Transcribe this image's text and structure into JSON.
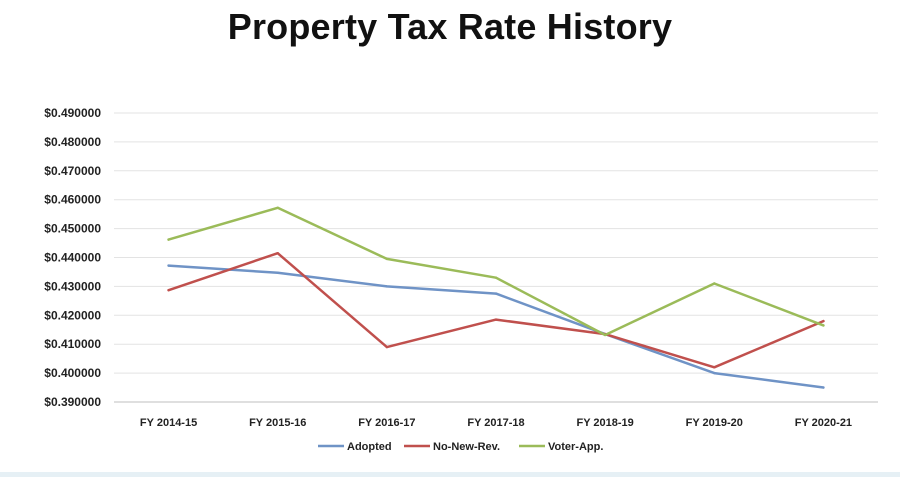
{
  "chart_data": {
    "type": "line",
    "title": "Property Tax Rate History",
    "categories": [
      "FY 2014-15",
      "FY 2015-16",
      "FY 2016-17",
      "FY 2017-18",
      "FY 2018-19",
      "FY 2019-20",
      "FY 2020-21"
    ],
    "yticks": [
      "$0.390000",
      "$0.400000",
      "$0.410000",
      "$0.420000",
      "$0.430000",
      "$0.440000",
      "$0.450000",
      "$0.460000",
      "$0.470000",
      "$0.480000",
      "$0.490000"
    ],
    "ylim": [
      0.39,
      0.49
    ],
    "grid": true,
    "legend_position": "bottom",
    "series": [
      {
        "name": "Adopted",
        "color": "#6f93c6",
        "values": [
          0.4372,
          0.4347,
          0.43,
          0.4275,
          0.4135,
          0.4,
          0.395
        ]
      },
      {
        "name": "No-New-Rev.",
        "color": "#c0504d",
        "values": [
          0.4287,
          0.4415,
          0.409,
          0.4185,
          0.4135,
          0.402,
          0.418
        ]
      },
      {
        "name": "Voter-App.",
        "color": "#9bbb59",
        "values": [
          0.4462,
          0.4572,
          0.4395,
          0.433,
          0.4132,
          0.431,
          0.4165
        ]
      }
    ]
  }
}
